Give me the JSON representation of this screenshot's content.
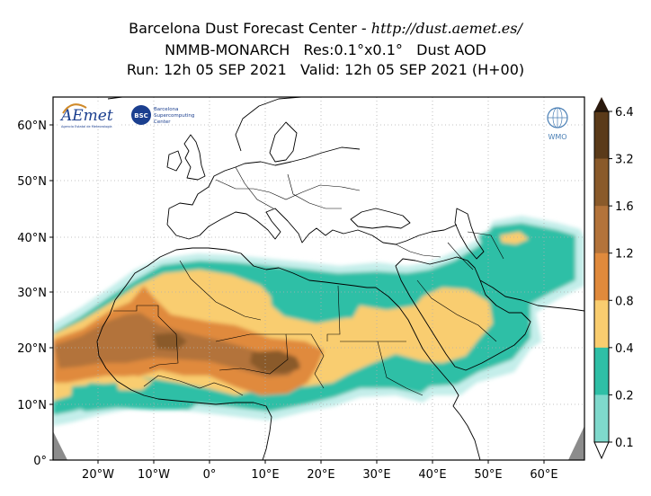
{
  "header": {
    "line1_prefix": "Barcelona Dust Forecast Center - ",
    "line1_url": "http://dust.aemet.es/",
    "line2": "NMMB-MONARCH   Res:0.1°x0.1°   Dust AOD",
    "line3": "Run: 12h 05 SEP 2021   Valid: 12h 05 SEP 2021 (H+00)"
  },
  "axes": {
    "lat_labels": [
      "60°N",
      "50°N",
      "40°N",
      "30°N",
      "20°N",
      "10°N",
      "0°"
    ],
    "lon_labels": [
      "20°W",
      "10°W",
      "0°",
      "10°E",
      "20°E",
      "30°E",
      "40°E",
      "50°E",
      "60°E"
    ]
  },
  "logos": {
    "aemet": "AEmet",
    "aemet_sub": "Agencia Estatal de Meteorología",
    "bsc_badge": "BSC",
    "bsc_text_1": "Barcelona",
    "bsc_text_2": "Supercomputing",
    "bsc_text_3": "Center",
    "wmo": "WMO"
  },
  "colorbar": {
    "labels": [
      "6.4",
      "3.2",
      "1.6",
      "1.2",
      "0.8",
      "0.4",
      "0.2",
      "0.1"
    ],
    "colors": [
      "#2b1a0e",
      "#5a3a19",
      "#8a5a2a",
      "#b3733a",
      "#e08a3c",
      "#f9cd6f",
      "#2fbfa6",
      "#7fd9cc",
      "#c4eeea"
    ],
    "colors_note_order": "top (extend) to bottom"
  },
  "colors": {
    "land_edge": "#000000",
    "ocean_and_land_background": "#ffffff",
    "no_data": "#8c8c8c"
  }
}
